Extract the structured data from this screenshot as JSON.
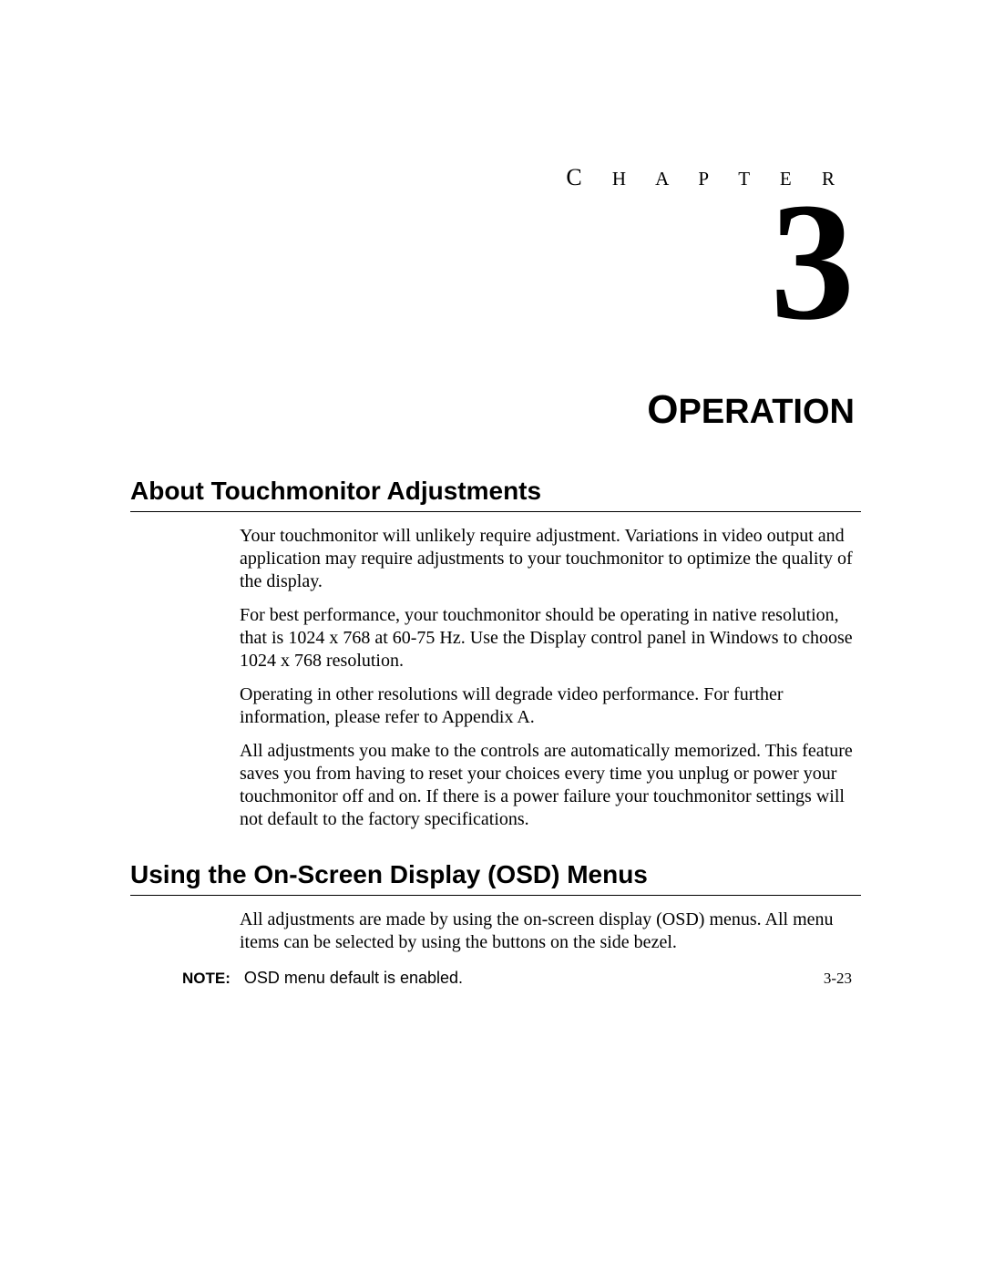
{
  "chapter": {
    "label_first": "C",
    "label_rest": " H A P T E R",
    "number": "3",
    "title_first": "O",
    "title_rest": "PERATION"
  },
  "section1": {
    "heading": "About Touchmonitor Adjustments",
    "p1": "Your touchmonitor will unlikely require adjustment. Variations in video output and application may require adjustments to your touchmonitor to optimize the quality of the display.",
    "p2": "For best performance, your touchmonitor should be operating in native resolution, that is 1024 x 768 at 60-75 Hz. Use the Display control panel in Windows to choose 1024 x 768 resolution.",
    "p3": "Operating in other resolutions will degrade video performance. For further information, please refer to Appendix A.",
    "p4": "All adjustments you make to the controls are automatically memorized. This feature saves you from having to reset your choices every time you unplug or power your touchmonitor off and on. If there is a power failure your touchmonitor settings will not default to the factory specifications."
  },
  "section2": {
    "heading": "Using the On-Screen Display (OSD) Menus",
    "p1": "All adjustments are made by using the on-screen display (OSD) menus. All menu items can be selected by using the buttons on the side bezel.",
    "note_label": "NOTE:",
    "note_text": "OSD menu default is enabled."
  },
  "footer": {
    "page_number": "3-23"
  }
}
